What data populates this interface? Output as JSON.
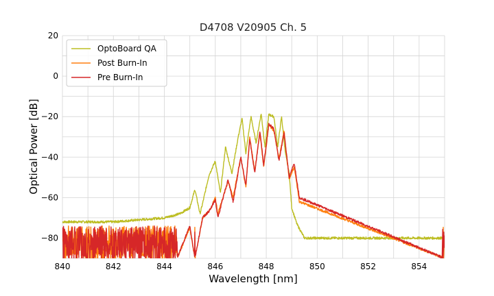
{
  "chart_data": {
    "type": "line",
    "title": "D4708 V20905 Ch. 5",
    "xlabel": "Wavelength [nm]",
    "ylabel": "Optical Power [dB]",
    "xlim": [
      840,
      855
    ],
    "ylim": [
      -90,
      20
    ],
    "xticks": [
      840,
      842,
      844,
      846,
      848,
      850,
      852,
      854
    ],
    "yticks": [
      20,
      0,
      -20,
      -40,
      -60,
      -80
    ],
    "xtick_labels": [
      "840",
      "842",
      "844",
      "846",
      "848",
      "850",
      "852",
      "854"
    ],
    "ytick_labels": [
      "20",
      "0",
      "−20",
      "−40",
      "−60",
      "−80"
    ],
    "grid": true,
    "legend_position": "top-left",
    "noise_floor_db": -90,
    "series": [
      {
        "name": "OptoBoard QA",
        "color": "#bcbd22",
        "x": [
          840.0,
          842.0,
          844.0,
          844.6,
          845.0,
          845.2,
          845.4,
          845.5,
          845.75,
          846.0,
          846.2,
          846.4,
          846.65,
          846.9,
          847.05,
          847.2,
          847.4,
          847.6,
          847.8,
          847.95,
          848.1,
          848.3,
          848.45,
          848.6,
          848.75,
          848.9,
          849.0,
          849.2,
          849.5,
          850.0,
          855.0
        ],
        "values": [
          -72,
          -72,
          -70,
          -68,
          -65,
          -56,
          -68,
          -63,
          -49,
          -42,
          -58,
          -35,
          -48,
          -30,
          -21,
          -38,
          -20,
          -33,
          -18.5,
          -35,
          -19,
          -20,
          -35,
          -20,
          -38,
          -48,
          -65,
          -73,
          -80,
          -80,
          -80
        ]
      },
      {
        "name": "Post Burn-In",
        "color": "#ff7f0e",
        "x": [
          840.0,
          844.5,
          845.0,
          845.2,
          845.5,
          845.8,
          846.0,
          846.1,
          846.5,
          846.7,
          847.0,
          847.2,
          847.35,
          847.55,
          847.75,
          847.9,
          848.1,
          848.3,
          848.5,
          848.7,
          848.9,
          849.1,
          849.3,
          855.0
        ],
        "values": [
          -90,
          -90,
          -75,
          -90,
          -70,
          -66,
          -60,
          -68,
          -52,
          -60,
          -40,
          -55,
          -30,
          -47,
          -28,
          -45,
          -24,
          -27,
          -41,
          -27,
          -51,
          -45,
          -62,
          -90
        ]
      },
      {
        "name": "Pre Burn-In",
        "color": "#d62728",
        "x": [
          840.0,
          844.5,
          845.0,
          845.2,
          845.5,
          845.8,
          846.0,
          846.1,
          846.5,
          846.7,
          847.0,
          847.2,
          847.35,
          847.55,
          847.75,
          847.9,
          848.1,
          848.3,
          848.5,
          848.7,
          848.9,
          849.1,
          849.3,
          855.0
        ],
        "values": [
          -90,
          -90,
          -74,
          -90,
          -70,
          -66,
          -61,
          -70,
          -51,
          -62,
          -40,
          -54,
          -31,
          -48,
          -27,
          -44,
          -23.5,
          -26,
          -42,
          -28,
          -50,
          -43,
          -60,
          -90
        ]
      }
    ]
  }
}
